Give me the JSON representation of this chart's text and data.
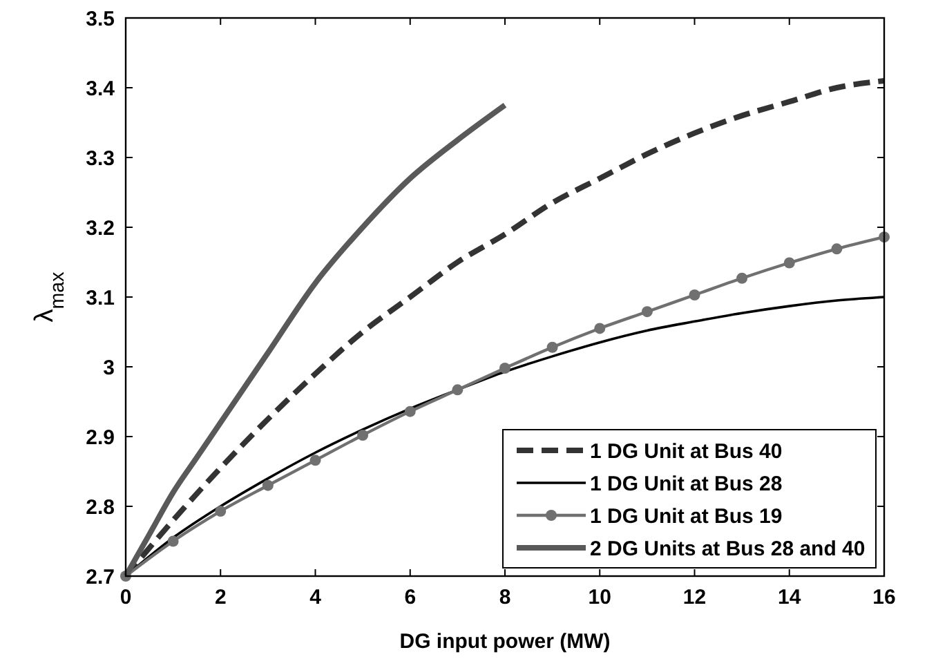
{
  "chart_data": {
    "type": "line",
    "xlabel": "DG input power (MW)",
    "ylabel": "λ$_{max}$",
    "xlim": [
      0,
      16
    ],
    "xticks": [
      0,
      2,
      4,
      6,
      8,
      10,
      12,
      14,
      16
    ],
    "ylim": [
      2.7,
      3.5
    ],
    "yticks": [
      {
        "value": 2.7,
        "label": "2.7"
      },
      {
        "value": 2.8,
        "label": "2.8"
      },
      {
        "value": 2.9,
        "label": "2.9"
      },
      3,
      {
        "value": 3.1,
        "label": "3.1"
      },
      {
        "value": 3.2,
        "label": "3.2"
      },
      {
        "value": 3.3,
        "label": "3.3"
      },
      {
        "value": 3.4,
        "label": "3.4"
      },
      {
        "value": 3.5,
        "label": "3.5"
      }
    ],
    "legend": "bottom right",
    "marker": "none",
    "line_style": "solid",
    "series": [
      {
        "name": "1 DG Unit at Bus 40",
        "color": "#333333",
        "line_style": "dashed",
        "x": [
          0,
          1,
          2,
          3,
          4,
          5,
          6,
          7,
          8,
          9,
          10,
          11,
          12,
          13,
          14,
          15,
          16
        ],
        "values": [
          2.7,
          2.78,
          2.855,
          2.925,
          2.99,
          3.05,
          3.1,
          3.15,
          3.19,
          3.235,
          3.27,
          3.305,
          3.335,
          3.36,
          3.38,
          3.4,
          3.41
        ]
      },
      {
        "name": "1 DG Unit at Bus 28",
        "color": "#000000",
        "x": [
          0,
          1,
          2,
          3,
          4,
          5,
          6,
          7,
          8,
          9,
          10,
          11,
          12,
          13,
          14,
          15,
          16
        ],
        "values": [
          2.7,
          2.755,
          2.8,
          2.84,
          2.877,
          2.91,
          2.94,
          2.967,
          2.993,
          3.015,
          3.035,
          3.052,
          3.065,
          3.077,
          3.087,
          3.095,
          3.1
        ]
      },
      {
        "name": "1 DG Unit at Bus 19",
        "color": "#707070",
        "marker": "circle",
        "x": [
          0,
          1,
          2,
          3,
          4,
          5,
          6,
          7,
          8,
          9,
          10,
          11,
          12,
          13,
          14,
          15,
          16
        ],
        "values": [
          2.7,
          2.75,
          2.793,
          2.83,
          2.866,
          2.902,
          2.936,
          2.967,
          2.998,
          3.028,
          3.055,
          3.079,
          3.103,
          3.127,
          3.149,
          3.169,
          3.186
        ]
      },
      {
        "name": "2 DG Units at Bus 28 and 40",
        "color": "#595959",
        "x": [
          0,
          0.5,
          1,
          1.5,
          2,
          3,
          4,
          5,
          6,
          7,
          8
        ],
        "values": [
          2.7,
          2.76,
          2.82,
          2.87,
          2.92,
          3.02,
          3.12,
          3.2,
          3.27,
          3.325,
          3.375
        ]
      }
    ]
  }
}
